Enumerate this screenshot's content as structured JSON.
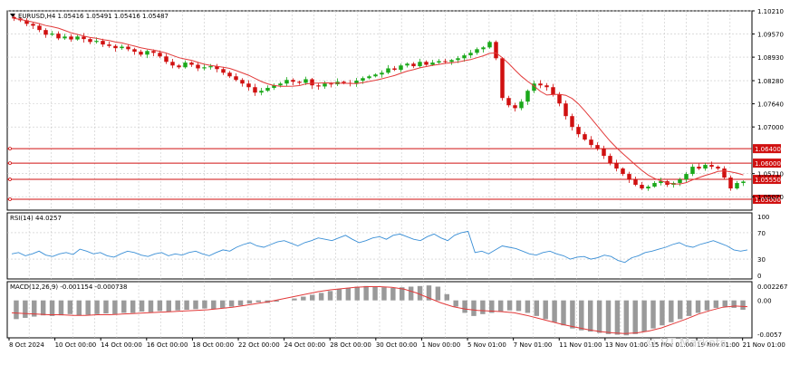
{
  "header": {
    "symbol_line": "EURUSD,H4  1.05416 1.05491 1.05416 1.05487"
  },
  "price_axis": {
    "labels": [
      "1.10210",
      "1.09570",
      "1.08930",
      "1.08280",
      "1.07640",
      "1.07000",
      "1.05710",
      "1.05070"
    ]
  },
  "levels": [
    {
      "label": "1.06400",
      "price": 1.064
    },
    {
      "label": "1.06000",
      "price": 1.06
    },
    {
      "label": "1.05550",
      "price": 1.0555
    },
    {
      "label": "1.05000",
      "price": 1.05
    }
  ],
  "rsi": {
    "title": "RSI(14) 44.0257",
    "axis_labels": [
      "100",
      "70",
      "30",
      "0"
    ]
  },
  "macd": {
    "title": "MACD(12,26,9) -0.001154 -0.000738",
    "axis_labels": [
      "0.002267",
      "0.00",
      "-0.0057"
    ]
  },
  "time_axis": {
    "labels": [
      "8 Oct 2024",
      "10 Oct 00:00",
      "14 Oct 00:00",
      "16 Oct 00:00",
      "18 Oct 00:00",
      "22 Oct 00:00",
      "24 Oct 00:00",
      "28 Oct 00:00",
      "30 Oct 00:00",
      "1 Nov 00:00",
      "5 Nov 01:00",
      "7 Nov 01:00",
      "11 Nov 01:00",
      "13 Nov 01:00",
      "15 Nov 01:00",
      "19 Nov 01:00",
      "21 Nov 01:00"
    ]
  },
  "watermark": "© VT Markets",
  "colors": {
    "bull": "#1aa81a",
    "bear": "#d01010",
    "ma": "#e23a3a",
    "rsi": "#3a8fd6",
    "level": "#d01010",
    "grid": "#c8c8c8",
    "signal": "#e23a3a",
    "hist": "#9a9a9a"
  },
  "chart_data": {
    "type": "candlestick",
    "y_range": [
      1.047,
      1.1021
    ],
    "ohlc_close_path": [
      1.1,
      1.0995,
      1.0985,
      1.098,
      1.0968,
      1.0955,
      1.0958,
      1.0945,
      1.095,
      1.0942,
      1.095,
      1.0943,
      1.0935,
      1.0938,
      1.0928,
      1.0924,
      1.0918,
      1.0922,
      1.0915,
      1.0908,
      1.09,
      1.091,
      1.0905,
      1.0895,
      1.088,
      1.087,
      1.0865,
      1.0878,
      1.0872,
      1.0862,
      1.0865,
      1.0868,
      1.086,
      1.085,
      1.084,
      1.083,
      1.082,
      1.081,
      1.0795,
      1.08,
      1.0808,
      1.0815,
      1.082,
      1.083,
      1.0825,
      1.0822,
      1.0832,
      1.0815,
      1.0812,
      1.082,
      1.0818,
      1.0825,
      1.0822,
      1.082,
      1.0828,
      1.0835,
      1.084,
      1.0845,
      1.085,
      1.0862,
      1.0858,
      1.087,
      1.0875,
      1.0868,
      1.088,
      1.0872,
      1.0878,
      1.0882,
      1.088,
      1.0885,
      1.089,
      1.0898,
      1.0905,
      1.0915,
      1.092,
      1.0935,
      1.089,
      1.078,
      1.076,
      1.0752,
      1.077,
      1.08,
      1.082,
      1.0815,
      1.081,
      1.079,
      1.0765,
      1.073,
      1.07,
      1.068,
      1.0665,
      1.065,
      1.064,
      1.062,
      1.06,
      1.0585,
      1.057,
      1.0555,
      1.054,
      1.053,
      1.0535,
      1.0545,
      1.055,
      1.054,
      1.0545,
      1.0555,
      1.057,
      1.059,
      1.0585,
      1.0595,
      1.059,
      1.0585,
      1.056,
      1.053,
      1.0545,
      1.0549
    ],
    "rsi_range": [
      0,
      100
    ],
    "rsi_values": [
      38,
      40,
      35,
      38,
      42,
      36,
      34,
      38,
      40,
      37,
      45,
      42,
      38,
      40,
      35,
      33,
      38,
      42,
      40,
      36,
      34,
      38,
      40,
      35,
      38,
      36,
      40,
      42,
      38,
      35,
      40,
      44,
      42,
      48,
      52,
      55,
      50,
      48,
      52,
      56,
      58,
      54,
      50,
      55,
      58,
      62,
      60,
      58,
      62,
      66,
      60,
      55,
      58,
      62,
      64,
      60,
      66,
      68,
      64,
      60,
      58,
      64,
      68,
      62,
      58,
      66,
      70,
      72,
      40,
      42,
      38,
      44,
      50,
      48,
      46,
      42,
      38,
      36,
      40,
      42,
      38,
      35,
      30,
      33,
      34,
      30,
      32,
      36,
      34,
      28,
      25,
      32,
      35,
      40,
      42,
      45,
      48,
      52,
      55,
      50,
      48,
      52,
      55,
      58,
      54,
      50,
      44,
      42,
      44
    ],
    "macd_hist": [
      -0.003,
      -0.0028,
      -0.0026,
      -0.0024,
      -0.0025,
      -0.0024,
      -0.0022,
      -0.0024,
      -0.0023,
      -0.0022,
      -0.0021,
      -0.0022,
      -0.002,
      -0.002,
      -0.0018,
      -0.0019,
      -0.0017,
      -0.0018,
      -0.0016,
      -0.0015,
      -0.0014,
      -0.0013,
      -0.0014,
      -0.0012,
      -0.001,
      -0.0008,
      -0.0005,
      -0.0003,
      -0.0004,
      -0.0002,
      0.0,
      0.0003,
      0.0006,
      0.0009,
      0.0012,
      0.0015,
      0.0018,
      0.002,
      0.0022,
      0.0023,
      0.0022,
      0.0021,
      0.002,
      0.0021,
      0.0022,
      0.0023,
      0.0024,
      0.0022,
      0.001,
      -0.001,
      -0.002,
      -0.0025,
      -0.0022,
      -0.002,
      -0.0018,
      -0.0016,
      -0.0017,
      -0.002,
      -0.0025,
      -0.003,
      -0.0035,
      -0.004,
      -0.0045,
      -0.0048,
      -0.005,
      -0.0052,
      -0.0054,
      -0.0055,
      -0.0056,
      -0.0054,
      -0.005,
      -0.0045,
      -0.004,
      -0.0035,
      -0.003,
      -0.0025,
      -0.002,
      -0.0016,
      -0.0012,
      -0.001,
      -0.0012,
      -0.0015
    ],
    "macd_signal": [
      -0.002,
      -0.0021,
      -0.0022,
      -0.0023,
      -0.0023,
      -0.0024,
      -0.0024,
      -0.0023,
      -0.0023,
      -0.0022,
      -0.0021,
      -0.002,
      -0.0019,
      -0.0018,
      -0.0017,
      -0.0016,
      -0.0015,
      -0.0013,
      -0.0011,
      -0.0008,
      -0.0005,
      -0.0002,
      0.0002,
      0.0006,
      0.001,
      0.0014,
      0.0017,
      0.0019,
      0.0021,
      0.0022,
      0.0022,
      0.0021,
      0.0018,
      0.0012,
      0.0004,
      -0.0004,
      -0.001,
      -0.0014,
      -0.0016,
      -0.0017,
      -0.0018,
      -0.002,
      -0.0024,
      -0.0029,
      -0.0034,
      -0.0039,
      -0.0043,
      -0.0047,
      -0.005,
      -0.0052,
      -0.0053,
      -0.0052,
      -0.0049,
      -0.0044,
      -0.0037,
      -0.003,
      -0.0022,
      -0.0016,
      -0.0011,
      -0.0009,
      -0.001
    ]
  }
}
